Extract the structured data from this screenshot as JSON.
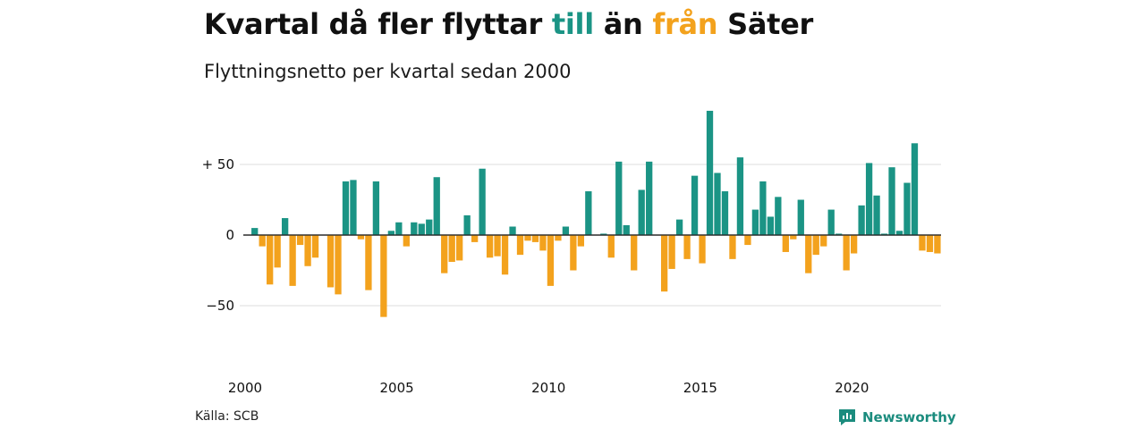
{
  "title": {
    "part1": "Kvartal då fler flyttar ",
    "till": "till",
    "part2": " än ",
    "fran": "från",
    "part3": " Säter"
  },
  "subtitle": "Flyttningsnetto per kvartal sedan 2000",
  "source": "Källa: SCB",
  "brand": "Newsworthy",
  "colors": {
    "positive": "#1b9485",
    "negative": "#f3a21d",
    "grid": "#dddddd",
    "zero": "#222222"
  },
  "chart_data": {
    "type": "bar",
    "y_tick_labels": [
      "+ 50",
      "0",
      "−50"
    ],
    "y_tick_values": [
      50,
      0,
      -50
    ],
    "x_tick_labels": [
      "2000",
      "2005",
      "2010",
      "2015",
      "2020"
    ],
    "x_tick_years": [
      2000,
      2005,
      2010,
      2015,
      2020
    ],
    "first_quarter": "2000 Q1",
    "ylim": [
      -75,
      93
    ],
    "values": [
      0,
      5,
      -8,
      -35,
      -23,
      12,
      -36,
      -7,
      -22,
      -16,
      0,
      -37,
      -42,
      38,
      39,
      -3,
      -39,
      38,
      -58,
      3,
      9,
      -8,
      9,
      8,
      11,
      41,
      -27,
      -19,
      -18,
      14,
      -5,
      47,
      -16,
      -15,
      -28,
      6,
      -14,
      -4,
      -5,
      -11,
      -36,
      -4,
      6,
      -25,
      -8,
      31,
      0,
      1,
      -16,
      52,
      7,
      -25,
      32,
      52,
      0,
      -40,
      -24,
      11,
      -17,
      42,
      -20,
      88,
      44,
      31,
      -17,
      55,
      -7,
      18,
      38,
      13,
      27,
      -12,
      -3,
      25,
      -27,
      -14,
      -8,
      18,
      1,
      -25,
      -13,
      21,
      51,
      28,
      1,
      48,
      3,
      37,
      65,
      -11,
      -12,
      -13
    ]
  }
}
